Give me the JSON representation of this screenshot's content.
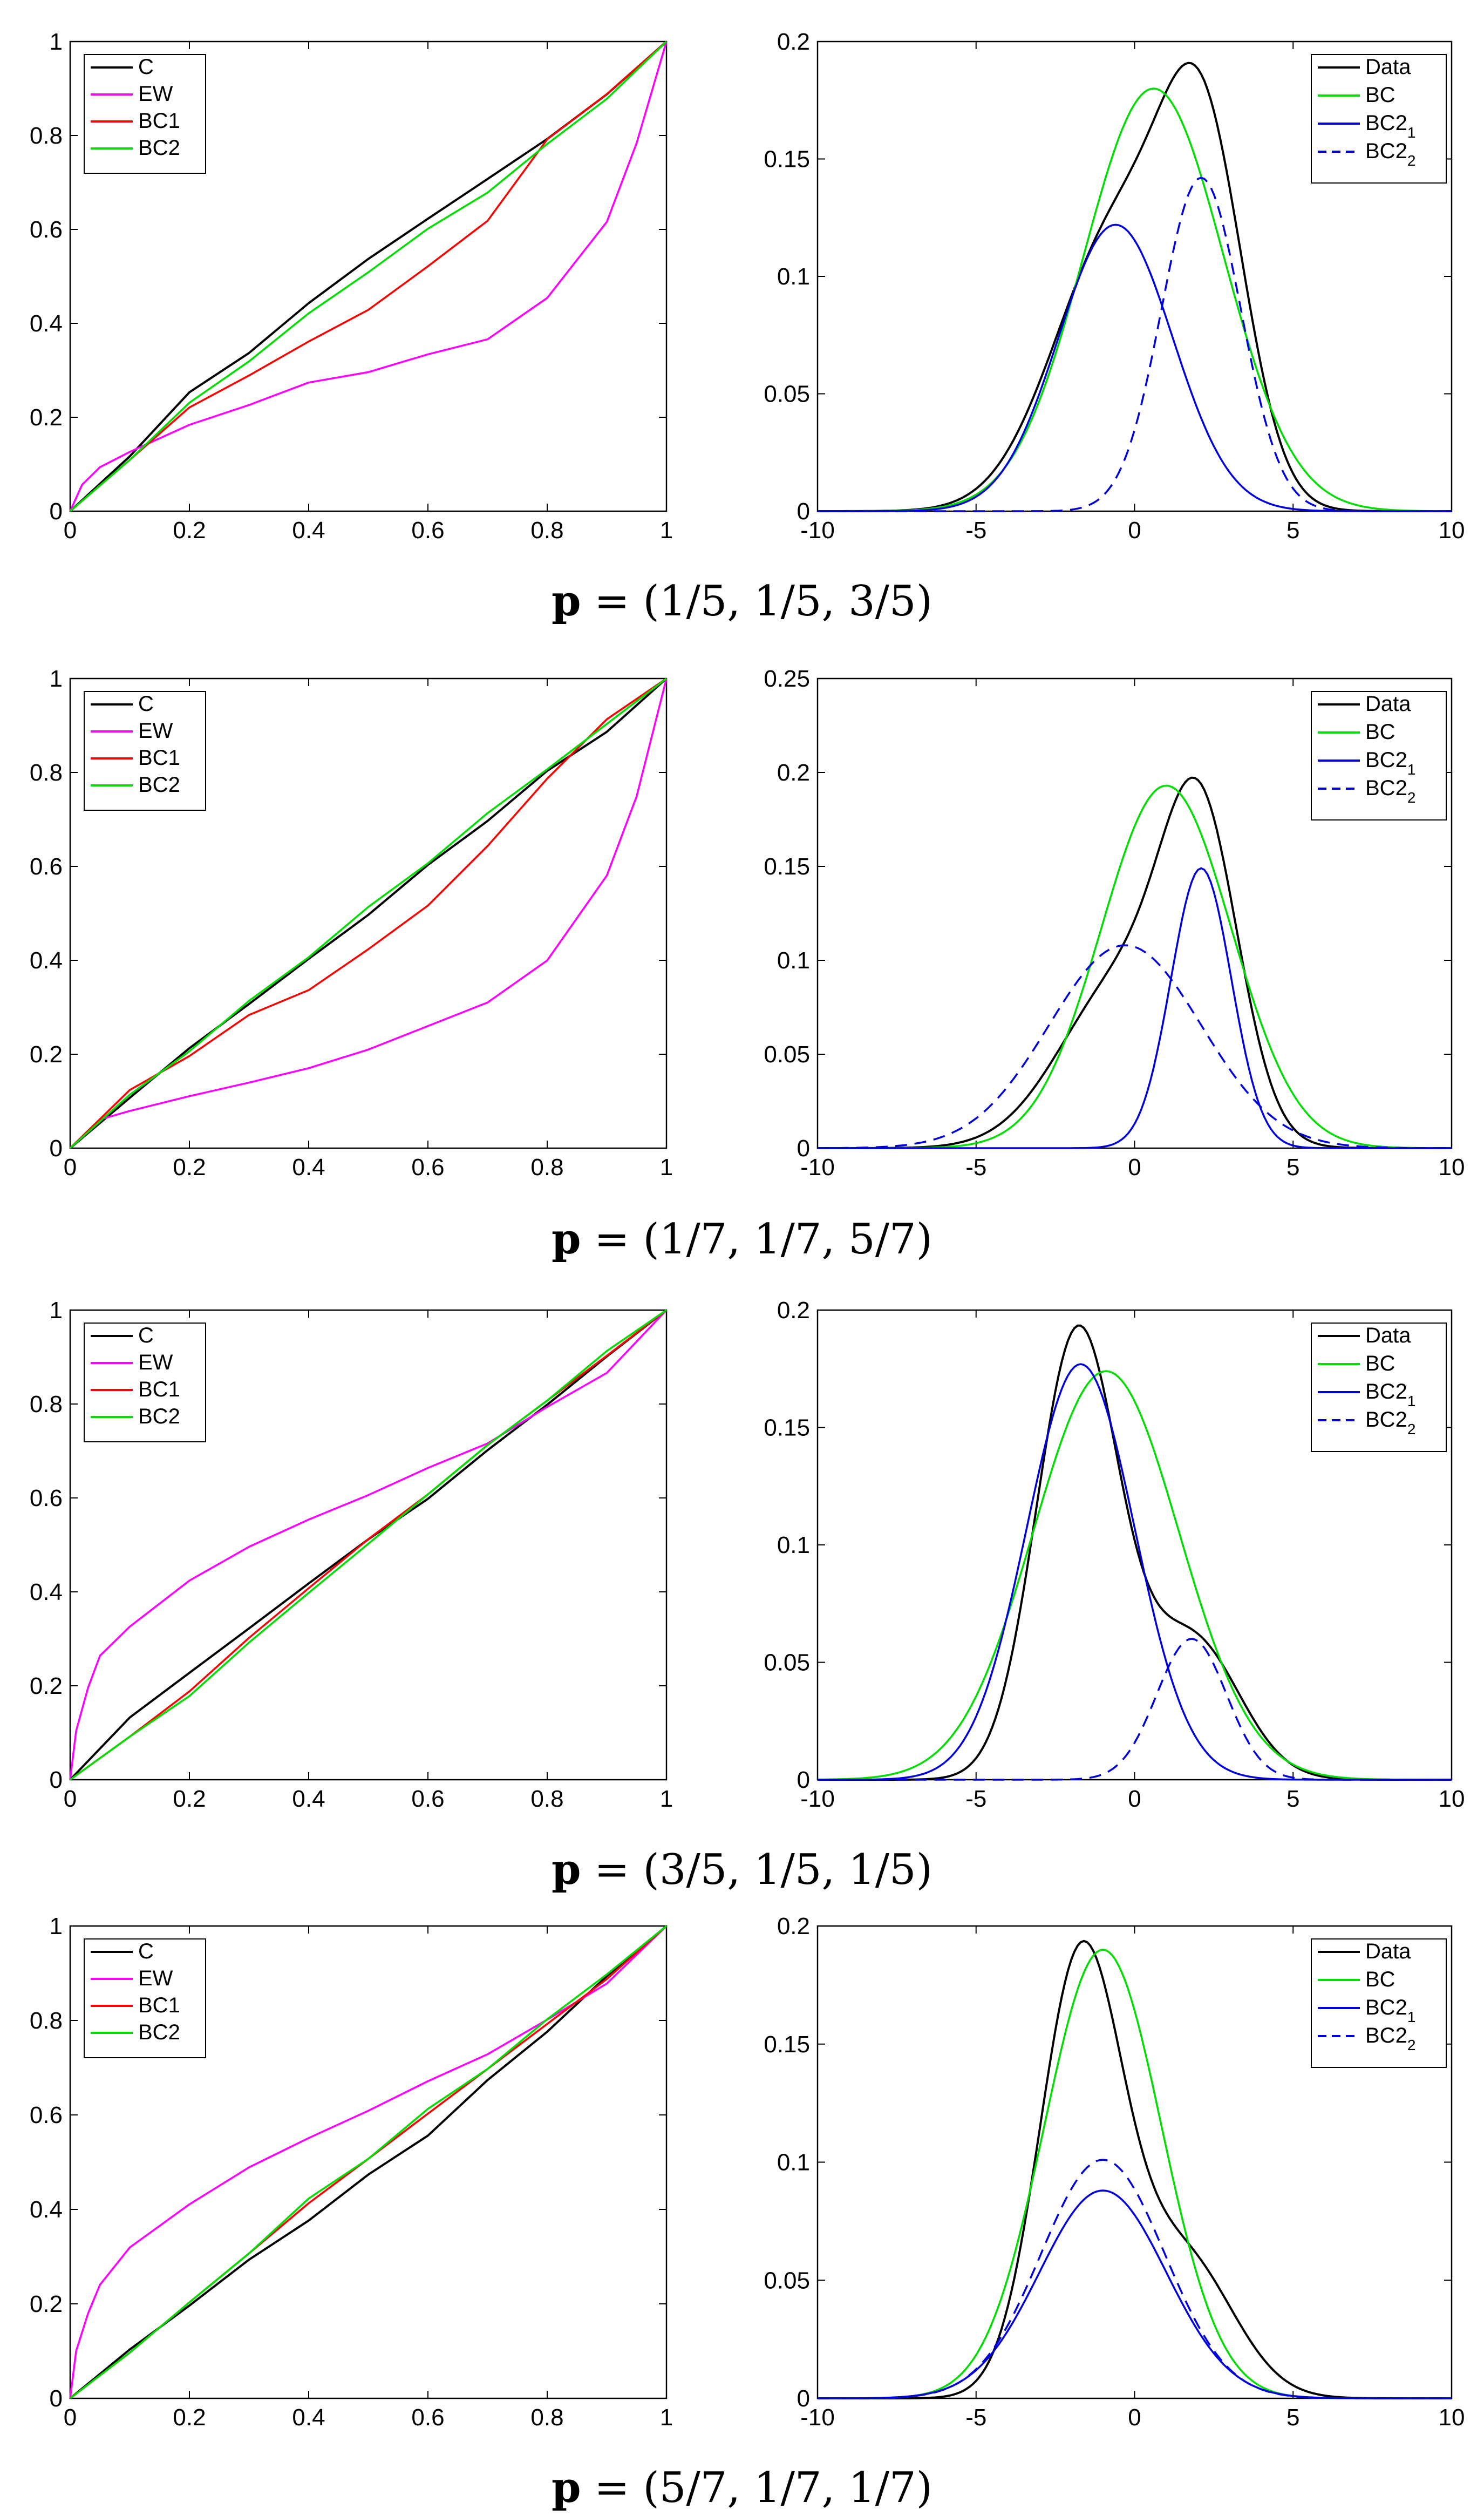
{
  "colors": {
    "C": "#000000",
    "EW": "#ff00ff",
    "BC1": "#ff0000",
    "BC2": "#00dd00",
    "Data": "#000000",
    "BC": "#00dd00",
    "BC2_1": "#0000dd",
    "BC2_2": "#0000dd"
  },
  "captions": [
    {
      "bold": "p",
      "rest": " = (1/5, 1/5, 3/5)"
    },
    {
      "bold": "p",
      "rest": " = (1/7, 1/7, 5/7)"
    },
    {
      "bold": "p",
      "rest": " = (3/5, 1/5, 1/5)"
    },
    {
      "bold": "p",
      "rest": " = (5/7, 1/7, 1/7)"
    }
  ],
  "chart_data": [
    {
      "type": "line",
      "panel": "calibration",
      "row": 0,
      "xlim": [
        0,
        1
      ],
      "ylim": [
        0,
        1
      ],
      "xticks": [
        "0",
        "0.2",
        "0.4",
        "0.6",
        "0.8",
        "1"
      ],
      "yticks": [
        "0",
        "0.2",
        "0.4",
        "0.6",
        "0.8",
        "1"
      ],
      "legend": [
        "C",
        "EW",
        "BC1",
        "BC2"
      ],
      "legend_position": "top-left",
      "series": [
        {
          "name": "C",
          "x": [
            0,
            0.1,
            0.2,
            0.3,
            0.4,
            0.5,
            0.6,
            0.7,
            0.8,
            0.9,
            1
          ],
          "y": [
            0,
            0.12,
            0.25,
            0.34,
            0.44,
            0.54,
            0.62,
            0.71,
            0.79,
            0.89,
            1
          ]
        },
        {
          "name": "EW",
          "x": [
            0,
            0.02,
            0.05,
            0.1,
            0.2,
            0.3,
            0.4,
            0.5,
            0.6,
            0.7,
            0.8,
            0.9,
            0.95,
            1
          ],
          "y": [
            0,
            0.06,
            0.09,
            0.13,
            0.18,
            0.23,
            0.27,
            0.3,
            0.33,
            0.37,
            0.45,
            0.62,
            0.78,
            1
          ]
        },
        {
          "name": "BC1",
          "x": [
            0,
            0.1,
            0.2,
            0.3,
            0.4,
            0.5,
            0.6,
            0.7,
            0.8,
            0.9,
            1
          ],
          "y": [
            0,
            0.11,
            0.22,
            0.29,
            0.36,
            0.43,
            0.52,
            0.62,
            0.79,
            0.89,
            1
          ]
        },
        {
          "name": "BC2",
          "x": [
            0,
            0.1,
            0.2,
            0.3,
            0.4,
            0.5,
            0.6,
            0.7,
            0.8,
            0.9,
            1
          ],
          "y": [
            0,
            0.11,
            0.23,
            0.32,
            0.42,
            0.51,
            0.6,
            0.68,
            0.78,
            0.88,
            1
          ]
        }
      ]
    },
    {
      "type": "line",
      "panel": "density",
      "row": 0,
      "xlim": [
        -10,
        10
      ],
      "ylim": [
        0,
        0.2
      ],
      "xticks": [
        "-10",
        "-5",
        "0",
        "5",
        "10"
      ],
      "yticks": [
        "0",
        "0.05",
        "0.1",
        "0.15",
        "0.2"
      ],
      "legend": [
        "Data",
        "BC",
        "BC2_1",
        "BC2_2"
      ],
      "legend_position": "top-right",
      "series": [
        {
          "name": "Data",
          "comps": [
            [
              0.12,
              -0.5,
              2.0
            ],
            [
              0.135,
              2.2,
              1.3
            ]
          ]
        },
        {
          "name": "BC",
          "comps": [
            [
              0.18,
              0.6,
              2.2
            ]
          ]
        },
        {
          "name": "BC2_1",
          "comps": [
            [
              0.122,
              -0.6,
              1.8
            ]
          ]
        },
        {
          "name": "BC2_2",
          "dashed": true,
          "comps": [
            [
              0.142,
              2.1,
              1.25
            ]
          ]
        }
      ]
    },
    {
      "type": "line",
      "panel": "calibration",
      "row": 1,
      "xlim": [
        0,
        1
      ],
      "ylim": [
        0,
        1
      ],
      "xticks": [
        "0",
        "0.2",
        "0.4",
        "0.6",
        "0.8",
        "1"
      ],
      "yticks": [
        "0",
        "0.2",
        "0.4",
        "0.6",
        "0.8",
        "1"
      ],
      "legend": [
        "C",
        "EW",
        "BC1",
        "BC2"
      ],
      "legend_position": "top-left",
      "series": [
        {
          "name": "C",
          "x": [
            0,
            0.1,
            0.2,
            0.3,
            0.4,
            0.5,
            0.6,
            0.7,
            0.8,
            0.9,
            1
          ],
          "y": [
            0,
            0.11,
            0.21,
            0.31,
            0.4,
            0.5,
            0.6,
            0.7,
            0.8,
            0.89,
            1
          ]
        },
        {
          "name": "EW",
          "x": [
            0,
            0.05,
            0.1,
            0.2,
            0.3,
            0.4,
            0.5,
            0.6,
            0.7,
            0.8,
            0.9,
            0.95,
            1
          ],
          "y": [
            0,
            0.06,
            0.08,
            0.11,
            0.14,
            0.17,
            0.21,
            0.26,
            0.31,
            0.4,
            0.58,
            0.75,
            1
          ]
        },
        {
          "name": "BC1",
          "x": [
            0,
            0.1,
            0.2,
            0.3,
            0.4,
            0.5,
            0.6,
            0.7,
            0.8,
            0.9,
            1
          ],
          "y": [
            0,
            0.12,
            0.2,
            0.28,
            0.34,
            0.42,
            0.52,
            0.64,
            0.79,
            0.91,
            1
          ]
        },
        {
          "name": "BC2",
          "x": [
            0,
            0.1,
            0.2,
            0.3,
            0.4,
            0.5,
            0.6,
            0.7,
            0.8,
            0.9,
            1
          ],
          "y": [
            0,
            0.11,
            0.21,
            0.31,
            0.41,
            0.51,
            0.61,
            0.71,
            0.81,
            0.9,
            1
          ]
        }
      ]
    },
    {
      "type": "line",
      "panel": "density",
      "row": 1,
      "xlim": [
        -10,
        10
      ],
      "ylim": [
        0,
        0.25
      ],
      "xticks": [
        "-10",
        "-5",
        "0",
        "5",
        "10"
      ],
      "yticks": [
        "0",
        "0.05",
        "0.1",
        "0.15",
        "0.2",
        "0.25"
      ],
      "legend": [
        "Data",
        "BC",
        "BC2_1",
        "BC2_2"
      ],
      "legend_position": "top-right",
      "series": [
        {
          "name": "Data",
          "comps": [
            [
              0.09,
              -0.3,
              2.0
            ],
            [
              0.15,
              2.1,
              1.2
            ]
          ]
        },
        {
          "name": "BC",
          "comps": [
            [
              0.193,
              1.0,
              2.05
            ]
          ]
        },
        {
          "name": "BC2_1",
          "comps": [
            [
              0.149,
              2.1,
              0.95
            ]
          ]
        },
        {
          "name": "BC2_2",
          "dashed": true,
          "comps": [
            [
              0.108,
              -0.3,
              2.4
            ]
          ]
        }
      ]
    },
    {
      "type": "line",
      "panel": "calibration",
      "row": 2,
      "xlim": [
        0,
        1
      ],
      "ylim": [
        0,
        1
      ],
      "xticks": [
        "0",
        "0.2",
        "0.4",
        "0.6",
        "0.8",
        "1"
      ],
      "yticks": [
        "0",
        "0.2",
        "0.4",
        "0.6",
        "0.8",
        "1"
      ],
      "legend": [
        "C",
        "EW",
        "BC1",
        "BC2"
      ],
      "legend_position": "top-left",
      "series": [
        {
          "name": "C",
          "x": [
            0,
            0.1,
            0.2,
            0.3,
            0.4,
            0.5,
            0.6,
            0.7,
            0.8,
            0.9,
            1
          ],
          "y": [
            0,
            0.13,
            0.23,
            0.32,
            0.42,
            0.51,
            0.6,
            0.7,
            0.8,
            0.9,
            1
          ]
        },
        {
          "name": "EW",
          "x": [
            0,
            0.01,
            0.03,
            0.05,
            0.1,
            0.2,
            0.3,
            0.4,
            0.5,
            0.6,
            0.7,
            0.8,
            0.9,
            1
          ],
          "y": [
            0,
            0.1,
            0.2,
            0.26,
            0.33,
            0.42,
            0.5,
            0.55,
            0.61,
            0.66,
            0.72,
            0.79,
            0.87,
            1
          ]
        },
        {
          "name": "BC1",
          "x": [
            0,
            0.1,
            0.2,
            0.3,
            0.4,
            0.5,
            0.6,
            0.7,
            0.8,
            0.9,
            1
          ],
          "y": [
            0,
            0.09,
            0.19,
            0.3,
            0.41,
            0.51,
            0.61,
            0.71,
            0.81,
            0.9,
            1
          ]
        },
        {
          "name": "BC2",
          "x": [
            0,
            0.1,
            0.2,
            0.3,
            0.4,
            0.5,
            0.6,
            0.7,
            0.8,
            0.9,
            1
          ],
          "y": [
            0,
            0.09,
            0.18,
            0.29,
            0.4,
            0.5,
            0.61,
            0.71,
            0.81,
            0.91,
            1
          ]
        }
      ]
    },
    {
      "type": "line",
      "panel": "density",
      "row": 2,
      "xlim": [
        -10,
        10
      ],
      "ylim": [
        0,
        0.2
      ],
      "xticks": [
        "-10",
        "-5",
        "0",
        "5",
        "10"
      ],
      "yticks": [
        "0",
        "0.05",
        "0.1",
        "0.15",
        "0.2"
      ],
      "legend": [
        "Data",
        "BC",
        "BC2_1",
        "BC2_2"
      ],
      "legend_position": "top-right",
      "series": [
        {
          "name": "Data",
          "comps": [
            [
              0.19,
              -1.8,
              1.3
            ],
            [
              0.06,
              1.8,
              1.5
            ]
          ]
        },
        {
          "name": "BC",
          "comps": [
            [
              0.174,
              -0.9,
              2.3
            ]
          ]
        },
        {
          "name": "BC2_1",
          "comps": [
            [
              0.177,
              -1.7,
              1.7
            ]
          ]
        },
        {
          "name": "BC2_2",
          "dashed": true,
          "comps": [
            [
              0.06,
              1.8,
              1.1
            ]
          ]
        }
      ]
    },
    {
      "type": "line",
      "panel": "calibration",
      "row": 3,
      "xlim": [
        0,
        1
      ],
      "ylim": [
        0,
        1
      ],
      "xticks": [
        "0",
        "0.2",
        "0.4",
        "0.6",
        "0.8",
        "1"
      ],
      "yticks": [
        "0",
        "0.2",
        "0.4",
        "0.6",
        "0.8",
        "1"
      ],
      "legend": [
        "C",
        "EW",
        "BC1",
        "BC2"
      ],
      "legend_position": "top-left",
      "series": [
        {
          "name": "C",
          "x": [
            0,
            0.1,
            0.2,
            0.3,
            0.4,
            0.5,
            0.6,
            0.7,
            0.8,
            0.9,
            1
          ],
          "y": [
            0,
            0.1,
            0.2,
            0.29,
            0.38,
            0.47,
            0.56,
            0.67,
            0.78,
            0.89,
            1
          ]
        },
        {
          "name": "EW",
          "x": [
            0,
            0.01,
            0.03,
            0.05,
            0.1,
            0.2,
            0.3,
            0.4,
            0.5,
            0.6,
            0.7,
            0.8,
            0.9,
            1
          ],
          "y": [
            0,
            0.1,
            0.18,
            0.24,
            0.32,
            0.41,
            0.49,
            0.55,
            0.61,
            0.67,
            0.73,
            0.8,
            0.88,
            1
          ]
        },
        {
          "name": "BC1",
          "x": [
            0,
            0.1,
            0.2,
            0.3,
            0.4,
            0.5,
            0.6,
            0.7,
            0.8,
            0.9,
            1
          ],
          "y": [
            0,
            0.1,
            0.2,
            0.31,
            0.41,
            0.51,
            0.6,
            0.7,
            0.79,
            0.89,
            1
          ]
        },
        {
          "name": "BC2",
          "x": [
            0,
            0.1,
            0.2,
            0.3,
            0.4,
            0.5,
            0.6,
            0.7,
            0.8,
            0.9,
            1
          ],
          "y": [
            0,
            0.1,
            0.2,
            0.31,
            0.42,
            0.51,
            0.61,
            0.7,
            0.8,
            0.9,
            1
          ]
        }
      ]
    },
    {
      "type": "line",
      "panel": "density",
      "row": 3,
      "xlim": [
        -10,
        10
      ],
      "ylim": [
        0,
        0.2
      ],
      "xticks": [
        "-10",
        "-5",
        "0",
        "5",
        "10"
      ],
      "yticks": [
        "0",
        "0.05",
        "0.1",
        "0.15",
        "0.2"
      ],
      "legend": [
        "Data",
        "BC",
        "BC2_1",
        "BC2_2"
      ],
      "legend_position": "top-right",
      "series": [
        {
          "name": "Data",
          "comps": [
            [
              0.185,
              -1.7,
              1.3
            ],
            [
              0.06,
              1.5,
              1.6
            ]
          ]
        },
        {
          "name": "BC",
          "comps": [
            [
              0.19,
              -1.0,
              1.85
            ]
          ]
        },
        {
          "name": "BC2_1",
          "comps": [
            [
              0.088,
              -1.0,
              2.0
            ]
          ]
        },
        {
          "name": "BC2_2",
          "dashed": true,
          "comps": [
            [
              0.101,
              -1.0,
              1.95
            ]
          ]
        }
      ]
    }
  ]
}
